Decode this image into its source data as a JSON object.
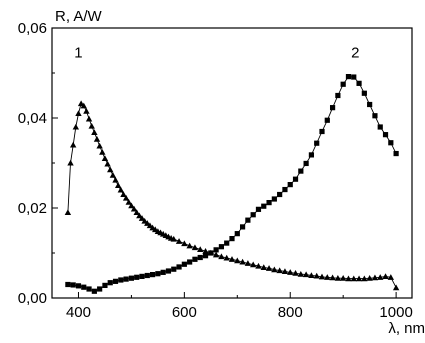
{
  "chart_data": {
    "type": "line",
    "ylabel": "R, A/W",
    "xlabel": "λ, nm",
    "xlim": [
      350,
      1030
    ],
    "ylim": [
      0,
      0.06
    ],
    "x_ticks": [
      {
        "value": 400,
        "label": "400"
      },
      {
        "value": 600,
        "label": "600"
      },
      {
        "value": 800,
        "label": "800"
      },
      {
        "value": 1000,
        "label": "1000"
      }
    ],
    "y_ticks": [
      {
        "value": 0.0,
        "label": "0,00"
      },
      {
        "value": 0.02,
        "label": "0,02"
      },
      {
        "value": 0.04,
        "label": "0,04"
      },
      {
        "value": 0.06,
        "label": "0,06"
      }
    ],
    "grid": false,
    "series": [
      {
        "name": "1",
        "marker": "triangle",
        "label_position": {
          "x": 400,
          "y": 0.0535
        },
        "x": [
          380,
          385,
          390,
          395,
          400,
          405,
          410,
          415,
          420,
          425,
          430,
          435,
          440,
          445,
          450,
          455,
          460,
          465,
          470,
          475,
          480,
          485,
          490,
          495,
          500,
          505,
          510,
          515,
          520,
          525,
          530,
          535,
          540,
          545,
          550,
          555,
          560,
          565,
          570,
          575,
          580,
          590,
          600,
          610,
          620,
          630,
          640,
          650,
          660,
          670,
          680,
          690,
          700,
          710,
          720,
          730,
          740,
          750,
          760,
          770,
          780,
          790,
          800,
          810,
          820,
          830,
          840,
          850,
          860,
          870,
          880,
          890,
          900,
          910,
          920,
          930,
          940,
          950,
          960,
          970,
          980,
          990,
          1000
        ],
        "values": [
          0.019,
          0.03,
          0.034,
          0.038,
          0.041,
          0.0432,
          0.0427,
          0.0415,
          0.0398,
          0.0382,
          0.0368,
          0.0353,
          0.0338,
          0.0324,
          0.031,
          0.0298,
          0.0285,
          0.0273,
          0.0262,
          0.025,
          0.024,
          0.023,
          0.0222,
          0.0213,
          0.0205,
          0.0198,
          0.019,
          0.0183,
          0.0177,
          0.0171,
          0.0166,
          0.0161,
          0.0156,
          0.0152,
          0.0148,
          0.0145,
          0.0142,
          0.0139,
          0.0136,
          0.0133,
          0.0131,
          0.0126,
          0.0121,
          0.0116,
          0.0112,
          0.0108,
          0.0104,
          0.01,
          0.0096,
          0.0092,
          0.0089,
          0.0086,
          0.0083,
          0.008,
          0.0077,
          0.0074,
          0.0071,
          0.0068,
          0.0066,
          0.0063,
          0.0061,
          0.0059,
          0.0057,
          0.0055,
          0.0053,
          0.0052,
          0.005,
          0.0049,
          0.0047,
          0.0046,
          0.0045,
          0.0044,
          0.0044,
          0.0043,
          0.0043,
          0.0043,
          0.0043,
          0.0044,
          0.0045,
          0.0046,
          0.0048,
          0.0046,
          0.0023
        ]
      },
      {
        "name": "2",
        "marker": "square",
        "label_position": {
          "x": 923,
          "y": 0.0535
        },
        "x": [
          380,
          390,
          400,
          410,
          420,
          430,
          440,
          450,
          460,
          470,
          480,
          490,
          500,
          510,
          520,
          530,
          540,
          550,
          560,
          570,
          580,
          590,
          600,
          610,
          620,
          630,
          640,
          650,
          660,
          670,
          680,
          690,
          700,
          710,
          720,
          730,
          740,
          750,
          760,
          770,
          780,
          790,
          800,
          810,
          820,
          830,
          840,
          850,
          860,
          870,
          880,
          890,
          900,
          910,
          920,
          930,
          940,
          950,
          960,
          970,
          980,
          990,
          1000
        ],
        "values": [
          0.003,
          0.0029,
          0.0027,
          0.0024,
          0.002,
          0.0015,
          0.002,
          0.0028,
          0.0034,
          0.0037,
          0.004,
          0.0042,
          0.0044,
          0.0046,
          0.0048,
          0.005,
          0.0052,
          0.0054,
          0.0057,
          0.006,
          0.0064,
          0.0069,
          0.0075,
          0.008,
          0.0086,
          0.009,
          0.0094,
          0.01,
          0.0107,
          0.0114,
          0.0122,
          0.0132,
          0.0143,
          0.0158,
          0.0173,
          0.0185,
          0.0197,
          0.0204,
          0.0212,
          0.022,
          0.023,
          0.0241,
          0.0252,
          0.0264,
          0.0282,
          0.0299,
          0.0318,
          0.0344,
          0.037,
          0.0395,
          0.0423,
          0.045,
          0.0475,
          0.0492,
          0.0491,
          0.0477,
          0.0455,
          0.043,
          0.0405,
          0.038,
          0.0363,
          0.0345,
          0.0321
        ]
      }
    ]
  }
}
